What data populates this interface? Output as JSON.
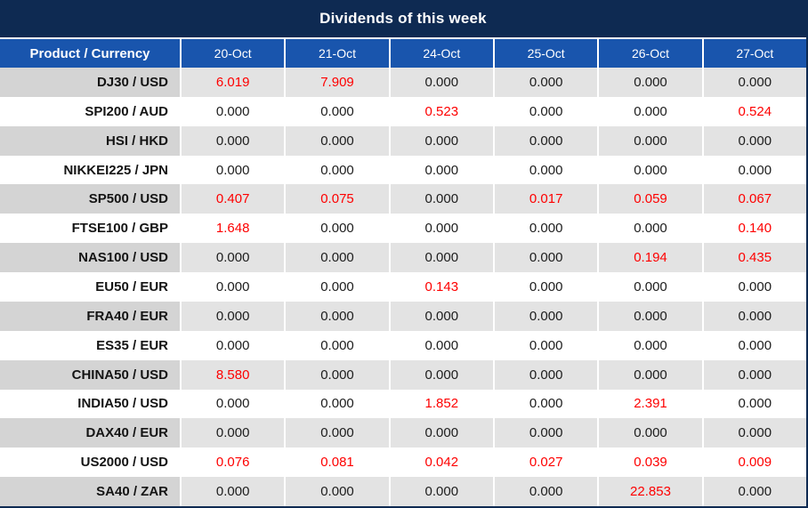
{
  "title": "Dividends of this week",
  "colors": {
    "title_bg": "#0e2a52",
    "header_bg": "#1955ad",
    "row_label_alt_bg": "#d4d4d4",
    "row_value_alt_bg": "#e3e3e3",
    "nonzero_value_color": "#fe0000",
    "zero_value_color": "#1c1c1c"
  },
  "table": {
    "columns": [
      "Product / Currency",
      "20-Oct",
      "21-Oct",
      "24-Oct",
      "25-Oct",
      "26-Oct",
      "27-Oct"
    ],
    "rows": [
      {
        "product": "DJ30 / USD",
        "values": [
          "6.019",
          "7.909",
          "0.000",
          "0.000",
          "0.000",
          "0.000"
        ]
      },
      {
        "product": "SPI200 / AUD",
        "values": [
          "0.000",
          "0.000",
          "0.523",
          "0.000",
          "0.000",
          "0.524"
        ]
      },
      {
        "product": "HSI / HKD",
        "values": [
          "0.000",
          "0.000",
          "0.000",
          "0.000",
          "0.000",
          "0.000"
        ]
      },
      {
        "product": "NIKKEI225 / JPN",
        "values": [
          "0.000",
          "0.000",
          "0.000",
          "0.000",
          "0.000",
          "0.000"
        ]
      },
      {
        "product": "SP500 / USD",
        "values": [
          "0.407",
          "0.075",
          "0.000",
          "0.017",
          "0.059",
          "0.067"
        ]
      },
      {
        "product": "FTSE100 / GBP",
        "values": [
          "1.648",
          "0.000",
          "0.000",
          "0.000",
          "0.000",
          "0.140"
        ]
      },
      {
        "product": "NAS100 / USD",
        "values": [
          "0.000",
          "0.000",
          "0.000",
          "0.000",
          "0.194",
          "0.435"
        ]
      },
      {
        "product": "EU50 / EUR",
        "values": [
          "0.000",
          "0.000",
          "0.143",
          "0.000",
          "0.000",
          "0.000"
        ]
      },
      {
        "product": "FRA40 / EUR",
        "values": [
          "0.000",
          "0.000",
          "0.000",
          "0.000",
          "0.000",
          "0.000"
        ]
      },
      {
        "product": "ES35 / EUR",
        "values": [
          "0.000",
          "0.000",
          "0.000",
          "0.000",
          "0.000",
          "0.000"
        ]
      },
      {
        "product": "CHINA50 / USD",
        "values": [
          "8.580",
          "0.000",
          "0.000",
          "0.000",
          "0.000",
          "0.000"
        ]
      },
      {
        "product": "INDIA50 / USD",
        "values": [
          "0.000",
          "0.000",
          "1.852",
          "0.000",
          "2.391",
          "0.000"
        ]
      },
      {
        "product": "DAX40 / EUR",
        "values": [
          "0.000",
          "0.000",
          "0.000",
          "0.000",
          "0.000",
          "0.000"
        ]
      },
      {
        "product": "US2000 / USD",
        "values": [
          "0.076",
          "0.081",
          "0.042",
          "0.027",
          "0.039",
          "0.009"
        ]
      },
      {
        "product": "SA40 / ZAR",
        "values": [
          "0.000",
          "0.000",
          "0.000",
          "0.000",
          "22.853",
          "0.000"
        ]
      }
    ]
  }
}
